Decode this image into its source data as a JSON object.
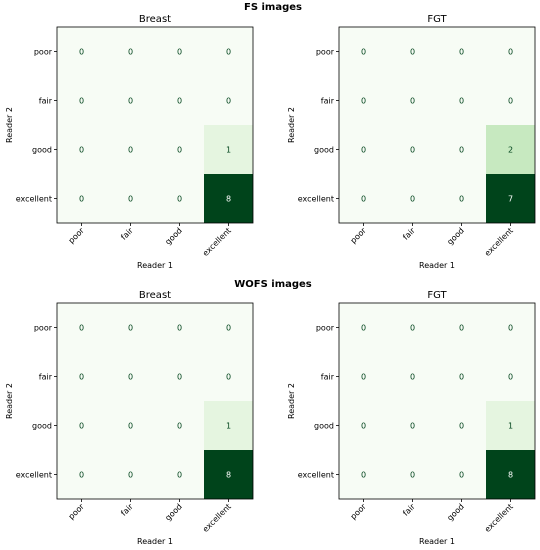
{
  "figure": {
    "sections": [
      {
        "title": "FS images"
      },
      {
        "title": "WOFS images"
      }
    ]
  },
  "colors": {
    "scale": [
      "#f7fcf5",
      "#e5f5e0",
      "#c7e9c0",
      "#a1d99b",
      "#74c476",
      "#41ab5d",
      "#238b45",
      "#006d2c",
      "#00441b"
    ],
    "text_dark": "#00441b",
    "text_light": "#ffffff"
  },
  "chart_data": [
    {
      "type": "heatmap",
      "section": "FS images",
      "title": "Breast",
      "xlabel": "Reader 1",
      "ylabel": "Reader 2",
      "x_categories": [
        "poor",
        "fair",
        "good",
        "excellent"
      ],
      "y_categories": [
        "poor",
        "fair",
        "good",
        "excellent"
      ],
      "values": [
        [
          0,
          0,
          0,
          0
        ],
        [
          0,
          0,
          0,
          0
        ],
        [
          0,
          0,
          0,
          1
        ],
        [
          0,
          0,
          0,
          8
        ]
      ],
      "grid": false
    },
    {
      "type": "heatmap",
      "section": "FS images",
      "title": "FGT",
      "xlabel": "Reader 1",
      "ylabel": "Reader 2",
      "x_categories": [
        "poor",
        "fair",
        "good",
        "excellent"
      ],
      "y_categories": [
        "poor",
        "fair",
        "good",
        "excellent"
      ],
      "values": [
        [
          0,
          0,
          0,
          0
        ],
        [
          0,
          0,
          0,
          0
        ],
        [
          0,
          0,
          0,
          2
        ],
        [
          0,
          0,
          0,
          7
        ]
      ],
      "grid": false
    },
    {
      "type": "heatmap",
      "section": "WOFS images",
      "title": "Breast",
      "xlabel": "Reader 1",
      "ylabel": "Reader 2",
      "x_categories": [
        "poor",
        "fair",
        "good",
        "excellent"
      ],
      "y_categories": [
        "poor",
        "fair",
        "good",
        "excellent"
      ],
      "values": [
        [
          0,
          0,
          0,
          0
        ],
        [
          0,
          0,
          0,
          0
        ],
        [
          0,
          0,
          0,
          1
        ],
        [
          0,
          0,
          0,
          8
        ]
      ],
      "grid": false
    },
    {
      "type": "heatmap",
      "section": "WOFS images",
      "title": "FGT",
      "xlabel": "Reader 1",
      "ylabel": "Reader 2",
      "x_categories": [
        "poor",
        "fair",
        "good",
        "excellent"
      ],
      "y_categories": [
        "poor",
        "fair",
        "good",
        "excellent"
      ],
      "values": [
        [
          0,
          0,
          0,
          0
        ],
        [
          0,
          0,
          0,
          0
        ],
        [
          0,
          0,
          0,
          1
        ],
        [
          0,
          0,
          0,
          8
        ]
      ],
      "grid": false
    }
  ]
}
